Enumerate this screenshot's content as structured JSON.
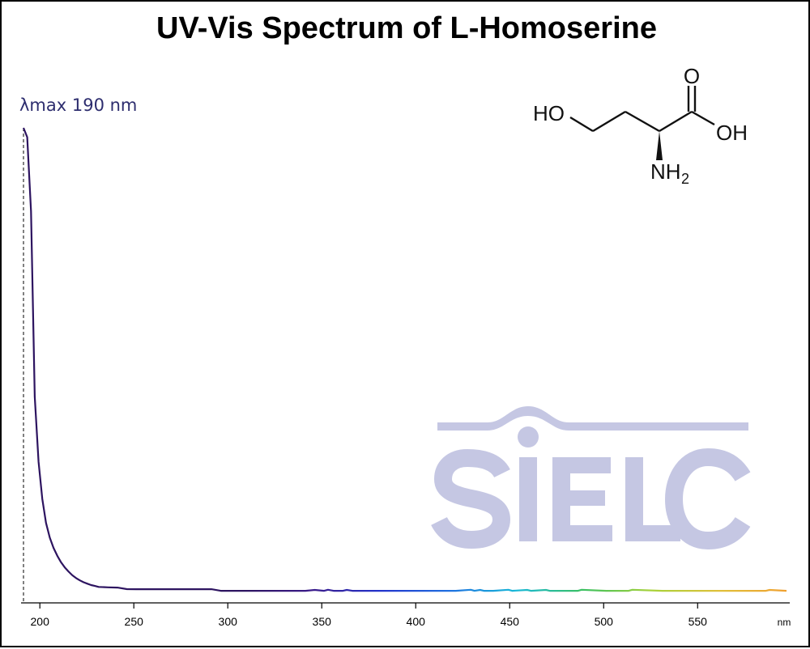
{
  "chart_data": {
    "type": "line",
    "title": "UV-Vis Spectrum of L-Homoserine",
    "xlabel": "nm",
    "ylabel": "",
    "xlim": [
      190,
      596
    ],
    "ylim": [
      0,
      1
    ],
    "xticks": [
      200,
      250,
      300,
      350,
      400,
      450,
      500,
      550
    ],
    "grid": false,
    "legend": "none",
    "annotation": {
      "label": "λmax  190 nm",
      "x": 190,
      "style": "dashed-vertical-line"
    },
    "series": [
      {
        "x": [
          190,
          192,
          194,
          196,
          198,
          200,
          202,
          204,
          206,
          208,
          210,
          212,
          214,
          216,
          218,
          220,
          222,
          224,
          226,
          228,
          230,
          235,
          240,
          245,
          250,
          260,
          270,
          280,
          290,
          295,
          300,
          320,
          340,
          345,
          350,
          352,
          355,
          360,
          362,
          365,
          370,
          380,
          400,
          420,
          428,
          430,
          433,
          435,
          440,
          448,
          450,
          458,
          460,
          468,
          470,
          485,
          487,
          500,
          512,
          514,
          530,
          550,
          570,
          585,
          587,
          596
        ],
        "y": [
          1.0,
          0.98,
          0.82,
          0.42,
          0.28,
          0.2,
          0.148,
          0.116,
          0.094,
          0.077,
          0.063,
          0.052,
          0.043,
          0.035,
          0.029,
          0.024,
          0.02,
          0.017,
          0.014,
          0.012,
          0.01,
          0.009,
          0.0085,
          0.0053,
          0.005,
          0.005,
          0.005,
          0.005,
          0.005,
          0.0015,
          0.0015,
          0.0015,
          0.0015,
          0.0035,
          0.0015,
          0.0038,
          0.0015,
          0.0015,
          0.0035,
          0.0015,
          0.0015,
          0.0015,
          0.0015,
          0.0015,
          0.0038,
          0.0015,
          0.0035,
          0.0015,
          0.0015,
          0.0038,
          0.0015,
          0.0035,
          0.0015,
          0.0035,
          0.0015,
          0.0015,
          0.0038,
          0.0015,
          0.0015,
          0.0038,
          0.0015,
          0.0015,
          0.0015,
          0.0015,
          0.0035,
          0.0015
        ]
      }
    ]
  },
  "molecule": {
    "atoms": {
      "hydroxyl_left": "HO",
      "carbonyl_oxygen": "O",
      "hydroxyl_right": "OH",
      "amine": "NH",
      "amine_subscript": "2"
    }
  },
  "watermark": {
    "text": "SIELC",
    "color": "#c5c7e3"
  },
  "colors": {
    "trace_uv": "#2d1460",
    "axis": "#000000",
    "lambda_text": "#2d2d6e",
    "spectrum_gradient": [
      "#2d1460",
      "#3a1b8a",
      "#2233cc",
      "#1f6fe0",
      "#18b8d8",
      "#3cc060",
      "#a8d23a",
      "#e0c03a",
      "#f0a030"
    ]
  }
}
